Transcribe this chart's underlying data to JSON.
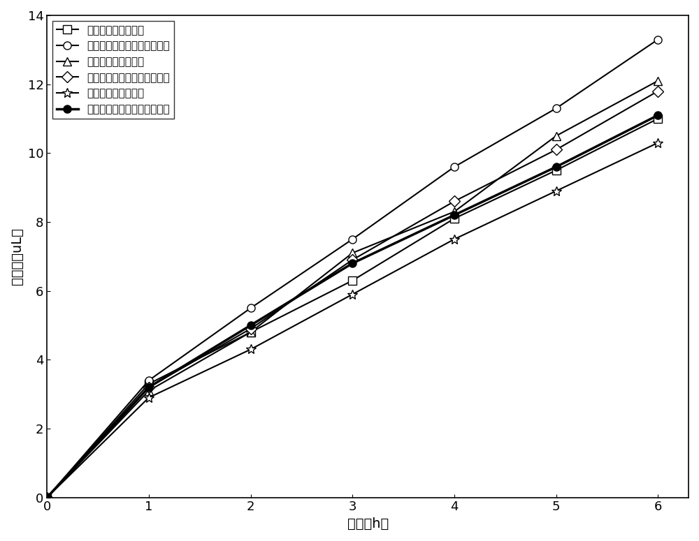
{
  "xlabel": "时间（h）",
  "ylabel": "产氢量（uL）",
  "xlim": [
    0,
    6.3
  ],
  "ylim": [
    0,
    14
  ],
  "xticks": [
    0,
    1,
    2,
    3,
    4,
    5,
    6
  ],
  "yticks": [
    0,
    2,
    4,
    6,
    8,
    10,
    12,
    14
  ],
  "series": [
    {
      "label": "广西拜尔法赤泥原料",
      "x": [
        0,
        1,
        2,
        3,
        4,
        5,
        6
      ],
      "y": [
        0,
        3.3,
        4.8,
        6.3,
        8.1,
        9.5,
        11.0
      ],
      "marker": "s",
      "color": "#000000",
      "linewidth": 1.5,
      "markersize": 8,
      "markerfacecolor": "white",
      "markeredgecolor": "#000000",
      "zorder": 3
    },
    {
      "label": "广西拜尔法赤泥基无机聚合物",
      "x": [
        0,
        1,
        2,
        3,
        4,
        5,
        6
      ],
      "y": [
        0,
        3.4,
        5.5,
        7.5,
        9.6,
        11.3,
        13.3
      ],
      "marker": "o",
      "color": "#000000",
      "linewidth": 1.5,
      "markersize": 8,
      "markerfacecolor": "white",
      "markeredgecolor": "#000000",
      "zorder": 3
    },
    {
      "label": "山西拜尔法赤泥原料",
      "x": [
        0,
        1,
        2,
        3,
        4,
        5,
        6
      ],
      "y": [
        0,
        3.1,
        4.8,
        7.1,
        8.3,
        10.5,
        12.1
      ],
      "marker": "^",
      "color": "#000000",
      "linewidth": 1.5,
      "markersize": 8,
      "markerfacecolor": "white",
      "markeredgecolor": "#000000",
      "zorder": 3
    },
    {
      "label": "山西拜尔法赤泥基无机聚合物",
      "x": [
        0,
        1,
        2,
        3,
        4,
        5,
        6
      ],
      "y": [
        0,
        3.2,
        4.9,
        6.9,
        8.6,
        10.1,
        11.8
      ],
      "marker": "D",
      "color": "#000000",
      "linewidth": 1.5,
      "markersize": 8,
      "markerfacecolor": "white",
      "markeredgecolor": "#000000",
      "zorder": 3
    },
    {
      "label": "山西烧结法赤泥原料",
      "x": [
        0,
        1,
        2,
        3,
        4,
        5,
        6
      ],
      "y": [
        0,
        2.9,
        4.3,
        5.9,
        7.5,
        8.9,
        10.3
      ],
      "marker": "*",
      "color": "#000000",
      "linewidth": 1.5,
      "markersize": 10,
      "markerfacecolor": "white",
      "markeredgecolor": "#000000",
      "zorder": 3
    },
    {
      "label": "山西烧结法赤泥基无机聚合物",
      "x": [
        0,
        1,
        2,
        3,
        4,
        5,
        6
      ],
      "y": [
        0,
        3.2,
        5.0,
        6.8,
        8.2,
        9.6,
        11.1
      ],
      "marker": "o",
      "color": "#000000",
      "linewidth": 2.5,
      "markersize": 8,
      "markerfacecolor": "#000000",
      "markeredgecolor": "#000000",
      "zorder": 4
    }
  ],
  "legend_fontsize": 11,
  "axis_fontsize": 14,
  "tick_fontsize": 13,
  "background_color": "#ffffff"
}
